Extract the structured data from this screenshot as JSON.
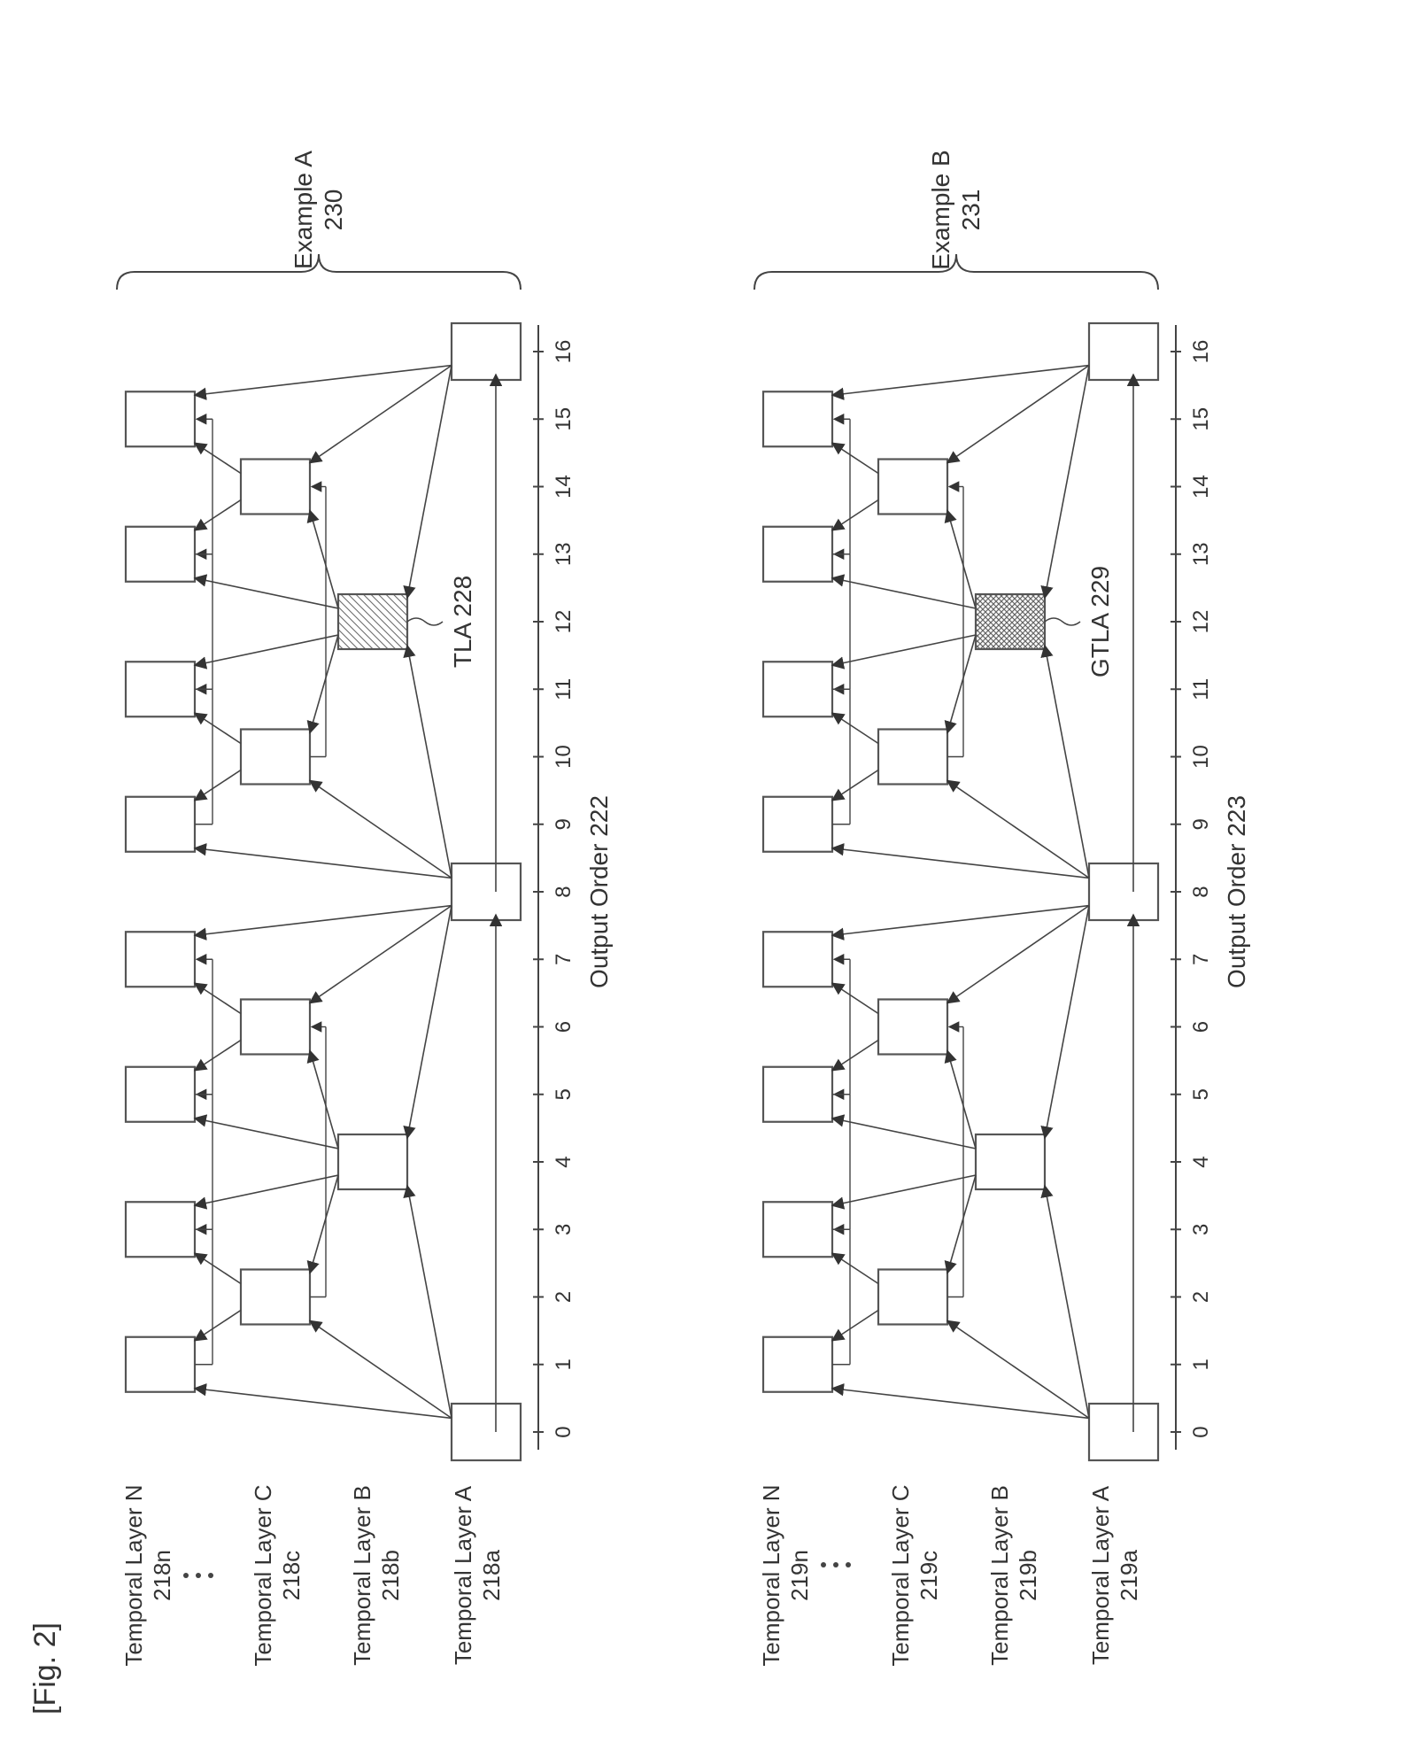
{
  "figure_label": "[Fig. 2]",
  "panels": [
    {
      "id": "A",
      "title": "Example A",
      "ref": "230",
      "axis_label": "Output Order 222",
      "callout": "TLA 228",
      "callout_frame": 12,
      "layers": [
        {
          "name": "Temporal Layer N",
          "ref": "218n"
        },
        {
          "name": "Temporal Layer C",
          "ref": "218c"
        },
        {
          "name": "Temporal Layer B",
          "ref": "218b"
        },
        {
          "name": "Temporal Layer A",
          "ref": "218a"
        }
      ]
    },
    {
      "id": "B",
      "title": "Example B",
      "ref": "231",
      "axis_label": "Output Order 223",
      "callout": "GTLA 229",
      "callout_frame": 12,
      "layers": [
        {
          "name": "Temporal Layer N",
          "ref": "219n"
        },
        {
          "name": "Temporal Layer C",
          "ref": "219c"
        },
        {
          "name": "Temporal Layer B",
          "ref": "219b"
        },
        {
          "name": "Temporal Layer A",
          "ref": "219a"
        }
      ]
    }
  ],
  "ticks": [
    "0",
    "1",
    "2",
    "3",
    "4",
    "5",
    "6",
    "7",
    "8",
    "9",
    "10",
    "11",
    "12",
    "13",
    "14",
    "15",
    "16"
  ],
  "layer_dots": "•\n•\n•",
  "frames": {
    "N": [
      1,
      3,
      5,
      7,
      9,
      11,
      13,
      15
    ],
    "C": [
      2,
      6,
      10,
      14
    ],
    "B": [
      4,
      12
    ],
    "A": [
      0,
      8,
      16
    ]
  },
  "references": [
    {
      "from_layer": "A",
      "from": 0,
      "to_layer": "B",
      "to": 4
    },
    {
      "from_layer": "A",
      "from": 8,
      "to_layer": "B",
      "to": 4
    },
    {
      "from_layer": "A",
      "from": 8,
      "to_layer": "B",
      "to": 12
    },
    {
      "from_layer": "A",
      "from": 16,
      "to_layer": "B",
      "to": 12
    },
    {
      "from_layer": "A",
      "from": 0,
      "to_layer": "C",
      "to": 2
    },
    {
      "from_layer": "B",
      "from": 4,
      "to_layer": "C",
      "to": 2
    },
    {
      "from_layer": "B",
      "from": 4,
      "to_layer": "C",
      "to": 6
    },
    {
      "from_layer": "A",
      "from": 8,
      "to_layer": "C",
      "to": 6
    },
    {
      "from_layer": "A",
      "from": 8,
      "to_layer": "C",
      "to": 10
    },
    {
      "from_layer": "B",
      "from": 12,
      "to_layer": "C",
      "to": 10
    },
    {
      "from_layer": "B",
      "from": 12,
      "to_layer": "C",
      "to": 14
    },
    {
      "from_layer": "A",
      "from": 16,
      "to_layer": "C",
      "to": 14
    },
    {
      "from_layer": "A",
      "from": 0,
      "to_layer": "N",
      "to": 1
    },
    {
      "from_layer": "C",
      "from": 2,
      "to_layer": "N",
      "to": 1
    },
    {
      "from_layer": "C",
      "from": 2,
      "to_layer": "N",
      "to": 3
    },
    {
      "from_layer": "B",
      "from": 4,
      "to_layer": "N",
      "to": 3
    },
    {
      "from_layer": "B",
      "from": 4,
      "to_layer": "N",
      "to": 5
    },
    {
      "from_layer": "C",
      "from": 6,
      "to_layer": "N",
      "to": 5
    },
    {
      "from_layer": "C",
      "from": 6,
      "to_layer": "N",
      "to": 7
    },
    {
      "from_layer": "A",
      "from": 8,
      "to_layer": "N",
      "to": 7
    },
    {
      "from_layer": "A",
      "from": 8,
      "to_layer": "N",
      "to": 9
    },
    {
      "from_layer": "C",
      "from": 10,
      "to_layer": "N",
      "to": 9
    },
    {
      "from_layer": "C",
      "from": 10,
      "to_layer": "N",
      "to": 11
    },
    {
      "from_layer": "B",
      "from": 12,
      "to_layer": "N",
      "to": 11
    },
    {
      "from_layer": "B",
      "from": 12,
      "to_layer": "N",
      "to": 13
    },
    {
      "from_layer": "C",
      "from": 14,
      "to_layer": "N",
      "to": 13
    },
    {
      "from_layer": "C",
      "from": 14,
      "to_layer": "N",
      "to": 15
    },
    {
      "from_layer": "A",
      "from": 16,
      "to_layer": "N",
      "to": 15
    }
  ],
  "same_layer_refs": [
    {
      "layer": "A",
      "from": 0,
      "to": 8
    },
    {
      "layer": "A",
      "from": 8,
      "to": 16
    },
    {
      "layer": "N",
      "from": 1,
      "to": 3
    },
    {
      "layer": "N",
      "from": 3,
      "to": 5
    },
    {
      "layer": "N",
      "from": 5,
      "to": 7
    },
    {
      "layer": "N",
      "from": 9,
      "to": 11
    },
    {
      "layer": "N",
      "from": 11,
      "to": 13
    },
    {
      "layer": "N",
      "from": 13,
      "to": 15
    },
    {
      "layer": "C",
      "from": 2,
      "to": 6
    },
    {
      "layer": "C",
      "from": 10,
      "to": 14
    }
  ],
  "colors": {
    "line": "#444444",
    "box": "#555555",
    "hatch": "#666666"
  }
}
